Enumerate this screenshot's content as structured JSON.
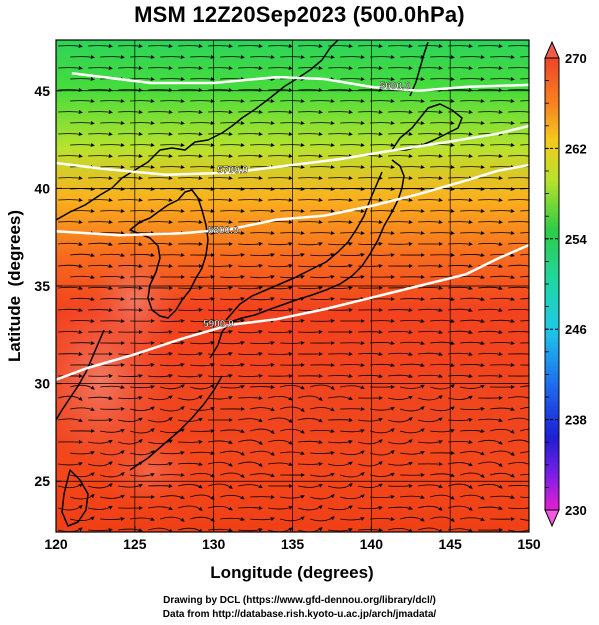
{
  "title": "MSM 12Z20Sep2023 (500.0hPa)",
  "map": {
    "xlabel": "Longitude (degrees)",
    "ylabel": "Latitude  (degrees)",
    "xlim": [
      120,
      150
    ],
    "ylim": [
      22.4,
      47.6
    ],
    "x_ticks": [
      {
        "value": 120,
        "label": "120"
      },
      {
        "value": 125,
        "label": "125"
      },
      {
        "value": 130,
        "label": "130"
      },
      {
        "value": 135,
        "label": "135"
      },
      {
        "value": 140,
        "label": "140"
      },
      {
        "value": 145,
        "label": "145"
      },
      {
        "value": 150,
        "label": "150"
      }
    ],
    "y_ticks": [
      {
        "value": 25,
        "label": "25"
      },
      {
        "value": 30,
        "label": "30"
      },
      {
        "value": 35,
        "label": "35"
      },
      {
        "value": 40,
        "label": "40"
      },
      {
        "value": 45,
        "label": "45"
      }
    ],
    "grid": true,
    "field": "temperature (shaded) with wind streamlines",
    "contours": [
      {
        "label": "5600.0",
        "points": [
          [
            121,
            45.9
          ],
          [
            126,
            45.4
          ],
          [
            130,
            45.4
          ],
          [
            134,
            45.7
          ],
          [
            137,
            45.6
          ],
          [
            140,
            45.2
          ],
          [
            143,
            45.0
          ],
          [
            146,
            45.2
          ],
          [
            150,
            45.3
          ]
        ],
        "label_at": [
          141.5,
          45.3
        ]
      },
      {
        "label": "5700.0",
        "points": [
          [
            120,
            41.3
          ],
          [
            123,
            41.0
          ],
          [
            127,
            40.7
          ],
          [
            131,
            40.8
          ],
          [
            135,
            41.2
          ],
          [
            138,
            41.5
          ],
          [
            141,
            41.9
          ],
          [
            145,
            42.4
          ],
          [
            148,
            42.8
          ],
          [
            150,
            43.2
          ]
        ],
        "label_at": [
          131.2,
          41.0
        ]
      },
      {
        "label": "5800.0",
        "points": [
          [
            120,
            37.8
          ],
          [
            124,
            37.6
          ],
          [
            128,
            37.7
          ],
          [
            131,
            37.9
          ],
          [
            134,
            38.4
          ],
          [
            137,
            38.6
          ],
          [
            140,
            39.1
          ],
          [
            143,
            39.7
          ],
          [
            146,
            40.4
          ],
          [
            148,
            40.9
          ],
          [
            150,
            41.2
          ]
        ],
        "label_at": [
          130.6,
          37.9
        ]
      },
      {
        "label": "5900.0",
        "points": [
          [
            120,
            30.2
          ],
          [
            122,
            30.8
          ],
          [
            125,
            31.5
          ],
          [
            128,
            32.3
          ],
          [
            131,
            33.0
          ],
          [
            134,
            33.3
          ],
          [
            137,
            33.8
          ],
          [
            140,
            34.4
          ],
          [
            143,
            35.0
          ],
          [
            146,
            35.6
          ],
          [
            148,
            36.4
          ],
          [
            150,
            37.1
          ]
        ],
        "label_at": [
          130.3,
          33.1
        ]
      }
    ]
  },
  "colorbar": {
    "min": 230,
    "max": 270,
    "tick_labels": [
      "270",
      "262",
      "254",
      "246",
      "238",
      "230"
    ],
    "tick_values": [
      270,
      262,
      254,
      246,
      238,
      230
    ]
  },
  "credits": [
    "Drawing by DCL (https://www.gfd-dennou.org/library/dcl/)",
    "Data from http://database.rish.kyoto-u.ac.jp/arch/jmadata/"
  ]
}
